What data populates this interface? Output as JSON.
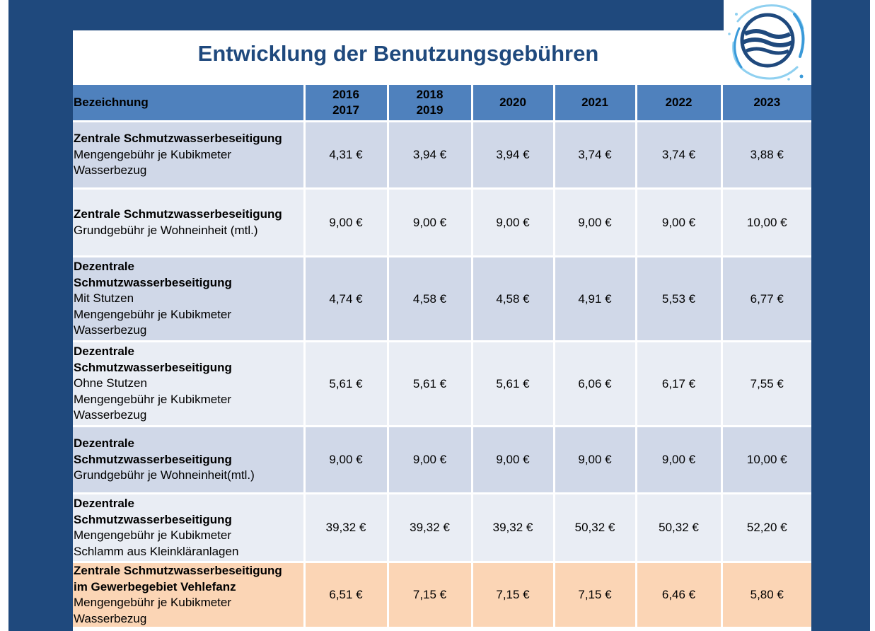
{
  "title": "Entwicklung der Benutzungsgebühren",
  "logo": {
    "icon": "water-splash-logo-icon",
    "colors": [
      "#1f497d",
      "#3a9ad9",
      "#8fd0f0"
    ]
  },
  "colors": {
    "frame": "#1f497d",
    "header": "#4f81bd",
    "row_dark": "#d0d8e8",
    "row_light": "#e9edf4",
    "row_highlight": "#fbd5b5"
  },
  "table": {
    "headers": [
      {
        "line1": "Bezeichnung",
        "line2": ""
      },
      {
        "line1": "2016",
        "line2": "2017"
      },
      {
        "line1": "2018",
        "line2": "2019"
      },
      {
        "line1": "2020",
        "line2": ""
      },
      {
        "line1": "2021",
        "line2": ""
      },
      {
        "line1": "2022",
        "line2": ""
      },
      {
        "line1": "2023",
        "line2": ""
      }
    ],
    "rows": [
      {
        "bold": [
          "Zentrale Schmutzwasserbeseitigung"
        ],
        "normal": [
          "Mengengebühr je Kubikmeter",
          "Wasserbezug"
        ],
        "values": [
          "4,31 €",
          "3,94 €",
          "3,94 €",
          "3,74 €",
          "3,74 €",
          "3,88 €"
        ]
      },
      {
        "bold": [
          "Zentrale Schmutzwasserbeseitigung"
        ],
        "normal": [
          "Grundgebühr je Wohneinheit (mtl.)"
        ],
        "values": [
          "9,00 €",
          "9,00 €",
          "9,00 €",
          "9,00 €",
          "9,00 €",
          "10,00 €"
        ]
      },
      {
        "bold": [
          "Dezentrale",
          "Schmutzwasserbeseitigung"
        ],
        "normal": [
          "Mit Stutzen",
          "Mengengebühr je Kubikmeter",
          "Wasserbezug"
        ],
        "values": [
          "4,74 €",
          "4,58 €",
          "4,58 €",
          "4,91 €",
          "5,53 €",
          "6,77 €"
        ]
      },
      {
        "bold": [
          "Dezentrale",
          "Schmutzwasserbeseitigung"
        ],
        "normal": [
          "Ohne Stutzen",
          "Mengengebühr je Kubikmeter",
          "Wasserbezug"
        ],
        "values": [
          "5,61 €",
          "5,61 €",
          "5,61 €",
          "6,06 €",
          "6,17 €",
          "7,55 €"
        ]
      },
      {
        "bold": [
          "Dezentrale",
          "Schmutzwasserbeseitigung"
        ],
        "normal": [
          "Grundgebühr je Wohneinheit(mtl.)"
        ],
        "values": [
          "9,00 €",
          "9,00 €",
          "9,00 €",
          "9,00 €",
          "9,00 €",
          "10,00 €"
        ]
      },
      {
        "bold": [
          "Dezentrale",
          "Schmutzwasserbeseitigung"
        ],
        "normal": [
          "Mengengebühr je Kubikmeter",
          "Schlamm aus Kleinkläranlagen"
        ],
        "values": [
          "39,32 €",
          "39,32 €",
          "39,32 €",
          "50,32 €",
          "50,32 €",
          "52,20 €"
        ]
      },
      {
        "bold": [
          "Zentrale Schmutzwasserbeseitigung",
          "im Gewerbegebiet Vehlefanz"
        ],
        "normal": [
          "Mengengebühr je Kubikmeter",
          "Wasserbezug"
        ],
        "values": [
          "6,51 €",
          "7,15 €",
          "7,15 €",
          "7,15 €",
          "6,46 €",
          "5,80 €"
        ]
      }
    ]
  }
}
